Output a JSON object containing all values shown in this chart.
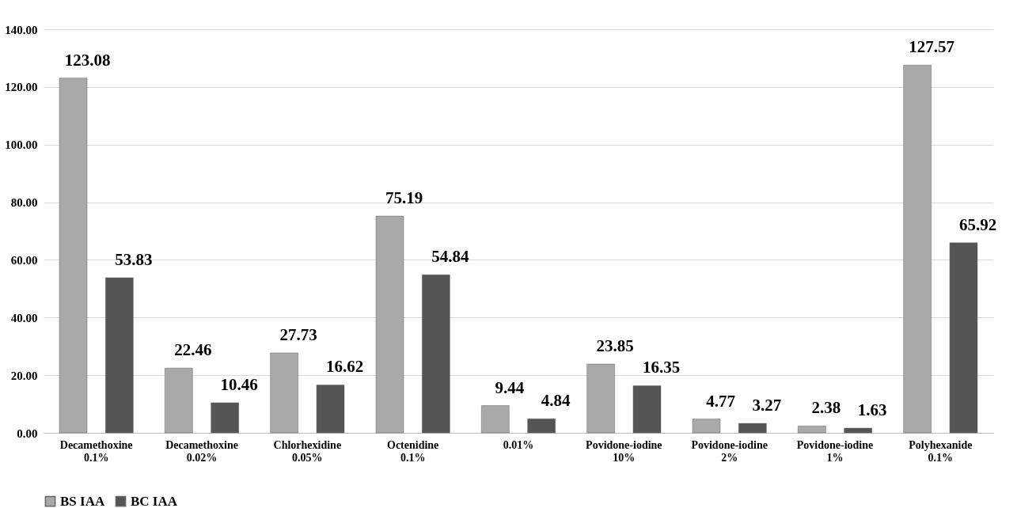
{
  "chart_data": {
    "type": "bar",
    "categories": [
      "Decamethoxine 0.1%",
      "Decamethoxine 0.02%",
      "Chlorhexidine 0.05%",
      "Octenidine 0.1%",
      "0.01%",
      "Povidone-iodine 10%",
      "Povidone-iodine 2%",
      "Povidone-iodine 1%",
      "Polyhexanide 0.1%"
    ],
    "series": [
      {
        "name": "BS IAA",
        "color": "#a9a9a9",
        "values": [
          123.08,
          22.46,
          27.73,
          75.19,
          9.44,
          23.85,
          4.77,
          2.38,
          127.57
        ]
      },
      {
        "name": "BC IAA",
        "color": "#555555",
        "values": [
          53.83,
          10.46,
          16.62,
          54.84,
          4.84,
          16.35,
          3.27,
          1.63,
          65.92
        ]
      }
    ],
    "ylim": [
      0,
      140
    ],
    "yticks": [
      {
        "value": 0,
        "label": "0.00"
      },
      {
        "value": 20,
        "label": "20.00"
      },
      {
        "value": 40,
        "label": "40.00"
      },
      {
        "value": 60,
        "label": "60.00"
      },
      {
        "value": 80,
        "label": "80.00"
      },
      {
        "value": 100,
        "label": "100.00"
      },
      {
        "value": 120,
        "label": "120.00"
      },
      {
        "value": 140,
        "label": "140.00"
      }
    ],
    "grid": "y",
    "legend": "bottom",
    "data_labels": true
  }
}
